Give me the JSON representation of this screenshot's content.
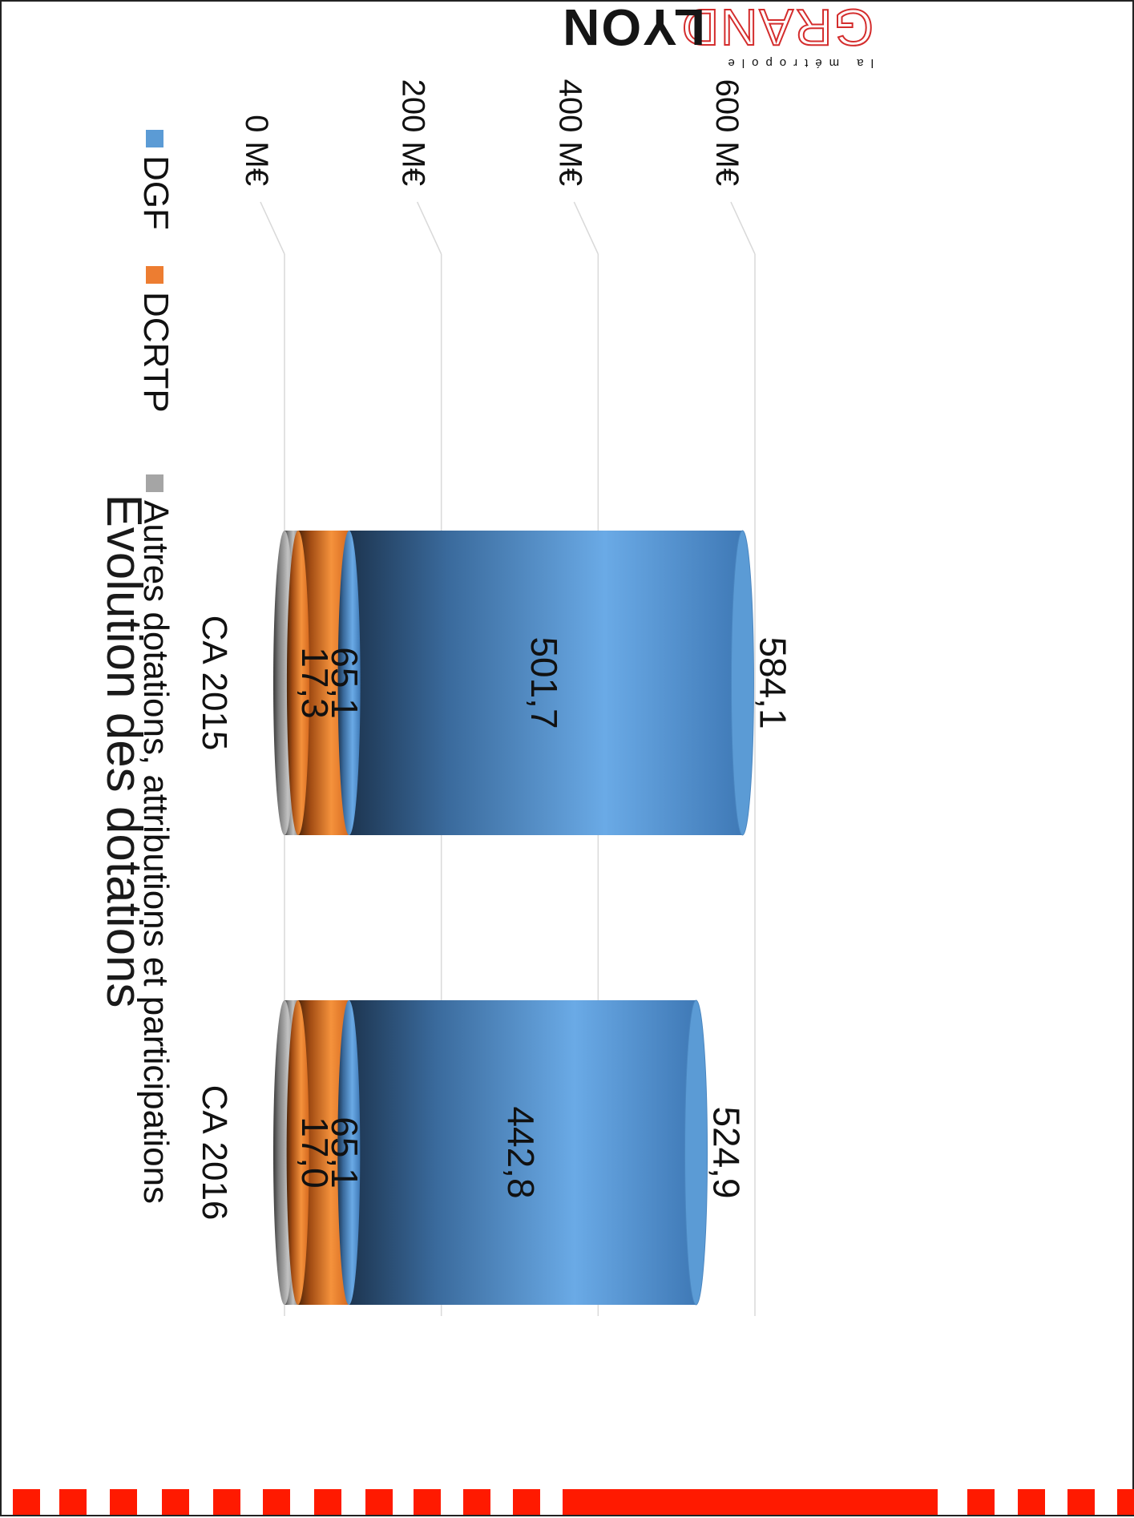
{
  "logo": {
    "top_text": "la métropole",
    "grand": "GRAND",
    "lyon": "LYON"
  },
  "colors": {
    "dgf": "#5b9bd5",
    "dcrtp": "#ed7d31",
    "autres": "#a5a5a5",
    "accent_red": "#ff1a00"
  },
  "chart_data": {
    "type": "bar",
    "stacked": true,
    "orientation": "rotated-90-clockwise",
    "title": "Evolution des dotations",
    "categories": [
      "CA 2015",
      "CA 2016"
    ],
    "series": [
      {
        "name": "DGF",
        "values": [
          501.7,
          442.8
        ]
      },
      {
        "name": "DCRTP",
        "values": [
          65.1,
          65.1
        ]
      },
      {
        "name": "Autres dotations, attributions et participations",
        "values": [
          17.3,
          17.0
        ]
      }
    ],
    "totals": [
      "584,1",
      "524,9"
    ],
    "value_labels": {
      "DGF": [
        "501,7",
        "442,8"
      ],
      "DCRTP": [
        "65,1",
        "65,1"
      ],
      "Autres dotations, attributions et participations": [
        "17,3",
        "17,0"
      ]
    },
    "ticks": [
      "0 M€",
      "200 M€",
      "400 M€",
      "600 M€"
    ],
    "tick_values": [
      0,
      200,
      400,
      600
    ],
    "ylim": [
      0,
      600
    ],
    "grid": true,
    "legend_position": "bottom"
  }
}
